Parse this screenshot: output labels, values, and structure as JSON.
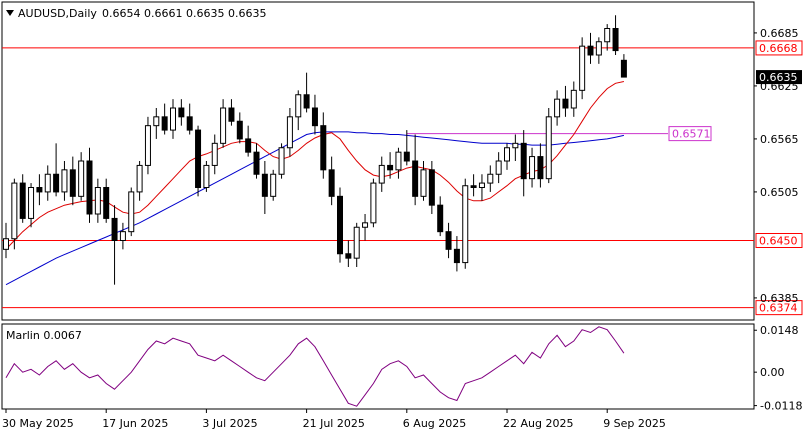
{
  "header": {
    "symbol": "AUDUSD,Daily",
    "ohlc": "0.6654 0.6661 0.6635 0.6635"
  },
  "chart_data": [
    {
      "type": "candlestick",
      "title": "AUDUSD,Daily",
      "ylim": [
        0.636,
        0.672
      ],
      "y_ticks": [
        "0.6685",
        "0.6625",
        "0.6565",
        "0.6505",
        "0.6385"
      ],
      "x_ticks": [
        {
          "label": "30 May 2025",
          "index": 0
        },
        {
          "label": "17 Jun 2025",
          "index": 12
        },
        {
          "label": "3 Jul 2025",
          "index": 24
        },
        {
          "label": "21 Jul 2025",
          "index": 36
        },
        {
          "label": "6 Aug 2025",
          "index": 48
        },
        {
          "label": "22 Aug 2025",
          "index": 60
        },
        {
          "label": "9 Sep 2025",
          "index": 72
        }
      ],
      "candles": [
        [
          0.644,
          0.647,
          0.643,
          0.6452
        ],
        [
          0.6452,
          0.652,
          0.644,
          0.6515
        ],
        [
          0.6515,
          0.6525,
          0.647,
          0.6475
        ],
        [
          0.6475,
          0.6515,
          0.6465,
          0.651
        ],
        [
          0.651,
          0.6525,
          0.649,
          0.6505
        ],
        [
          0.6505,
          0.6535,
          0.6495,
          0.6525
        ],
        [
          0.6525,
          0.656,
          0.65,
          0.6505
        ],
        [
          0.6505,
          0.654,
          0.6495,
          0.653
        ],
        [
          0.653,
          0.6545,
          0.649,
          0.65
        ],
        [
          0.65,
          0.655,
          0.6495,
          0.654
        ],
        [
          0.654,
          0.6555,
          0.647,
          0.648
        ],
        [
          0.648,
          0.652,
          0.647,
          0.651
        ],
        [
          0.651,
          0.652,
          0.647,
          0.6475
        ],
        [
          0.6475,
          0.649,
          0.64,
          0.645
        ],
        [
          0.645,
          0.647,
          0.644,
          0.646
        ],
        [
          0.646,
          0.651,
          0.6455,
          0.6505
        ],
        [
          0.6505,
          0.654,
          0.6495,
          0.6535
        ],
        [
          0.6535,
          0.659,
          0.6525,
          0.658
        ],
        [
          0.658,
          0.66,
          0.6565,
          0.659
        ],
        [
          0.659,
          0.6605,
          0.657,
          0.6575
        ],
        [
          0.6575,
          0.661,
          0.6565,
          0.66
        ],
        [
          0.66,
          0.661,
          0.658,
          0.659
        ],
        [
          0.659,
          0.6605,
          0.657,
          0.6575
        ],
        [
          0.6575,
          0.658,
          0.65,
          0.651
        ],
        [
          0.651,
          0.654,
          0.6505,
          0.6535
        ],
        [
          0.6535,
          0.657,
          0.6525,
          0.656
        ],
        [
          0.656,
          0.661,
          0.6555,
          0.66
        ],
        [
          0.66,
          0.661,
          0.658,
          0.6585
        ],
        [
          0.6585,
          0.6595,
          0.656,
          0.6565
        ],
        [
          0.6565,
          0.658,
          0.6545,
          0.655
        ],
        [
          0.655,
          0.656,
          0.652,
          0.6525
        ],
        [
          0.6525,
          0.654,
          0.648,
          0.65
        ],
        [
          0.65,
          0.653,
          0.6495,
          0.6525
        ],
        [
          0.6525,
          0.656,
          0.652,
          0.6555
        ],
        [
          0.6555,
          0.66,
          0.6545,
          0.659
        ],
        [
          0.659,
          0.662,
          0.6575,
          0.6615
        ],
        [
          0.6615,
          0.664,
          0.6595,
          0.66
        ],
        [
          0.66,
          0.6615,
          0.657,
          0.658
        ],
        [
          0.658,
          0.6595,
          0.652,
          0.653
        ],
        [
          0.653,
          0.6545,
          0.649,
          0.65
        ],
        [
          0.65,
          0.651,
          0.6425,
          0.6435
        ],
        [
          0.6435,
          0.645,
          0.642,
          0.643
        ],
        [
          0.643,
          0.647,
          0.642,
          0.6465
        ],
        [
          0.6465,
          0.648,
          0.645,
          0.647
        ],
        [
          0.647,
          0.652,
          0.6465,
          0.6515
        ],
        [
          0.6515,
          0.6545,
          0.6505,
          0.6535
        ],
        [
          0.6535,
          0.655,
          0.652,
          0.653
        ],
        [
          0.653,
          0.6555,
          0.652,
          0.655
        ],
        [
          0.655,
          0.6575,
          0.6535,
          0.654
        ],
        [
          0.654,
          0.657,
          0.649,
          0.65
        ],
        [
          0.65,
          0.654,
          0.6495,
          0.653
        ],
        [
          0.653,
          0.654,
          0.648,
          0.649
        ],
        [
          0.649,
          0.65,
          0.6455,
          0.646
        ],
        [
          0.646,
          0.647,
          0.643,
          0.644
        ],
        [
          0.644,
          0.6455,
          0.6415,
          0.6425
        ],
        [
          0.6425,
          0.652,
          0.6418,
          0.6512
        ],
        [
          0.6512,
          0.6525,
          0.65,
          0.651
        ],
        [
          0.651,
          0.6525,
          0.6495,
          0.6515
        ],
        [
          0.6515,
          0.6535,
          0.6505,
          0.6525
        ],
        [
          0.6525,
          0.655,
          0.6515,
          0.654
        ],
        [
          0.654,
          0.656,
          0.653,
          0.6555
        ],
        [
          0.6555,
          0.657,
          0.654,
          0.656
        ],
        [
          0.656,
          0.6575,
          0.65,
          0.652
        ],
        [
          0.652,
          0.6555,
          0.651,
          0.6545
        ],
        [
          0.6545,
          0.656,
          0.651,
          0.652
        ],
        [
          0.652,
          0.66,
          0.6515,
          0.659
        ],
        [
          0.659,
          0.662,
          0.658,
          0.661
        ],
        [
          0.661,
          0.6625,
          0.659,
          0.66
        ],
        [
          0.66,
          0.663,
          0.659,
          0.662
        ],
        [
          0.662,
          0.668,
          0.661,
          0.667
        ],
        [
          0.667,
          0.6685,
          0.665,
          0.666
        ],
        [
          0.666,
          0.668,
          0.665,
          0.6675
        ],
        [
          0.6675,
          0.6695,
          0.6665,
          0.669
        ],
        [
          0.669,
          0.6705,
          0.666,
          0.6665
        ],
        [
          0.6654,
          0.6661,
          0.6635,
          0.6635
        ]
      ],
      "ma_fast": [
        0.644,
        0.645,
        0.646,
        0.6468,
        0.6476,
        0.6482,
        0.6486,
        0.649,
        0.6492,
        0.6494,
        0.6495,
        0.6496,
        0.6494,
        0.6488,
        0.6482,
        0.648,
        0.6482,
        0.649,
        0.65,
        0.651,
        0.652,
        0.653,
        0.654,
        0.6545,
        0.6548,
        0.6552,
        0.6556,
        0.656,
        0.6562,
        0.6562,
        0.656,
        0.6552,
        0.6545,
        0.6542,
        0.6545,
        0.6552,
        0.656,
        0.6566,
        0.657,
        0.6572,
        0.6565,
        0.6552,
        0.654,
        0.653,
        0.6524,
        0.6522,
        0.6524,
        0.6528,
        0.6532,
        0.6534,
        0.6532,
        0.653,
        0.6524,
        0.6516,
        0.6506,
        0.6498,
        0.6495,
        0.6495,
        0.6498,
        0.6505,
        0.6512,
        0.652,
        0.6524,
        0.6528,
        0.653,
        0.6536,
        0.6546,
        0.6558,
        0.657,
        0.6585,
        0.66,
        0.6612,
        0.6622,
        0.6628,
        0.663
      ],
      "ma_slow": [
        0.64,
        0.6405,
        0.641,
        0.6415,
        0.642,
        0.6425,
        0.643,
        0.6434,
        0.6438,
        0.6442,
        0.6446,
        0.645,
        0.6454,
        0.6458,
        0.6462,
        0.6466,
        0.647,
        0.6475,
        0.648,
        0.6485,
        0.649,
        0.6495,
        0.65,
        0.6505,
        0.651,
        0.6515,
        0.652,
        0.6525,
        0.653,
        0.6535,
        0.654,
        0.6545,
        0.655,
        0.6555,
        0.656,
        0.6565,
        0.657,
        0.6572,
        0.6573,
        0.6573,
        0.6573,
        0.6573,
        0.6572,
        0.6572,
        0.6571,
        0.6571,
        0.657,
        0.657,
        0.6569,
        0.6568,
        0.6567,
        0.6566,
        0.6565,
        0.6564,
        0.6563,
        0.6562,
        0.6561,
        0.656,
        0.656,
        0.656,
        0.656,
        0.6559,
        0.6559,
        0.6558,
        0.6558,
        0.6558,
        0.6559,
        0.656,
        0.6561,
        0.6562,
        0.6563,
        0.6564,
        0.6565,
        0.6567,
        0.6569
      ],
      "levels": [
        {
          "price": 0.6668,
          "label": "0.6668",
          "color": "#ff0000"
        },
        {
          "price": 0.645,
          "label": "0.6450",
          "color": "#ff0000"
        },
        {
          "price": 0.6374,
          "label": "0.6374",
          "color": "#ff0000"
        },
        {
          "price": 0.6571,
          "label": "0.6571",
          "color": "#cc33cc",
          "start_index": 48
        }
      ],
      "current_price": {
        "price": 0.6635,
        "label": "0.6635"
      },
      "colors": {
        "bull": "#000000",
        "bear": "#000000",
        "ma_fast": "#dd0000",
        "ma_slow": "#0000cc"
      }
    },
    {
      "type": "line",
      "title": "Marlin 0.0067",
      "ylim": [
        -0.013,
        0.017
      ],
      "y_ticks": [
        "0.0148",
        "0.00",
        "-0.0118"
      ],
      "values": [
        -0.002,
        0.003,
        0.0,
        0.001,
        -0.001,
        0.002,
        0.004,
        0.001,
        0.003,
        0.0,
        -0.002,
        -0.001,
        -0.004,
        -0.006,
        -0.003,
        0.0,
        0.004,
        0.008,
        0.011,
        0.01,
        0.012,
        0.011,
        0.01,
        0.006,
        0.005,
        0.004,
        0.006,
        0.004,
        0.002,
        0.0,
        -0.002,
        -0.003,
        0.0,
        0.003,
        0.006,
        0.01,
        0.012,
        0.009,
        0.004,
        -0.001,
        -0.006,
        -0.011,
        -0.012,
        -0.008,
        -0.004,
        0.001,
        0.003,
        0.004,
        0.002,
        -0.002,
        -0.001,
        -0.004,
        -0.007,
        -0.009,
        -0.01,
        -0.004,
        -0.003,
        -0.002,
        0.0,
        0.002,
        0.004,
        0.006,
        0.003,
        0.007,
        0.005,
        0.01,
        0.013,
        0.009,
        0.011,
        0.015,
        0.014,
        0.016,
        0.015,
        0.011,
        0.0067
      ],
      "color": "#800080"
    }
  ]
}
